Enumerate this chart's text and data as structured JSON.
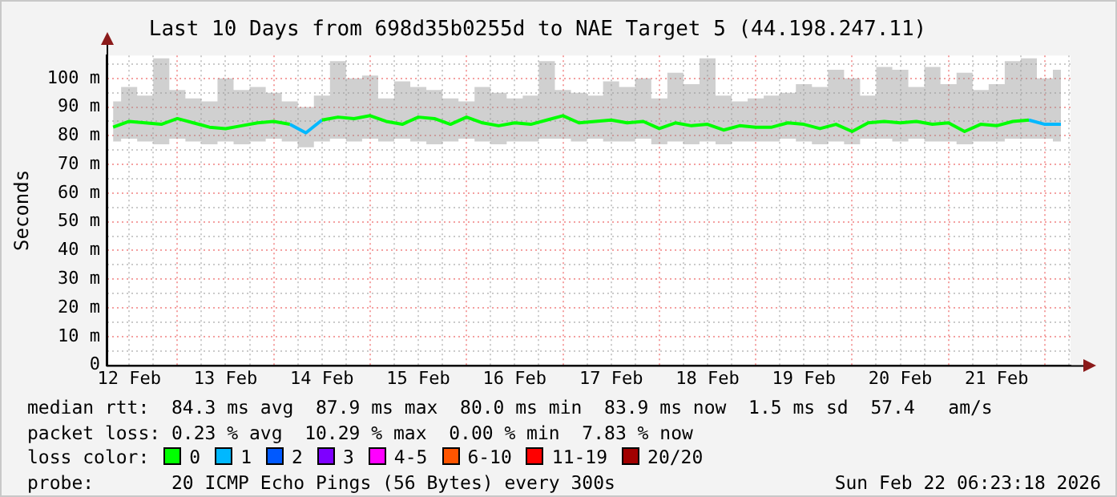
{
  "chart_data": {
    "type": "line",
    "title": "Last 10 Days from 698d35b0255d to NAE Target 5 (44.198.247.11)",
    "ylabel": "Seconds",
    "legend_title": "loss color:",
    "legend": "bottom",
    "grid": true,
    "marker": "none",
    "line_style": "solid",
    "x": [
      "2026-02-12T08:00",
      "2026-02-12T12:00",
      "2026-02-12T16:00",
      "2026-02-12T20:00",
      "2026-02-13T00:00",
      "2026-02-13T04:00",
      "2026-02-13T08:00",
      "2026-02-13T12:00",
      "2026-02-13T16:00",
      "2026-02-13T20:00",
      "2026-02-14T00:00",
      "2026-02-14T04:00",
      "2026-02-14T08:00",
      "2026-02-14T12:00",
      "2026-02-14T16:00",
      "2026-02-14T20:00",
      "2026-02-15T00:00",
      "2026-02-15T04:00",
      "2026-02-15T08:00",
      "2026-02-15T12:00",
      "2026-02-15T16:00",
      "2026-02-15T20:00",
      "2026-02-16T00:00",
      "2026-02-16T04:00",
      "2026-02-16T08:00",
      "2026-02-16T12:00",
      "2026-02-16T16:00",
      "2026-02-16T20:00",
      "2026-02-17T00:00",
      "2026-02-17T04:00",
      "2026-02-17T08:00",
      "2026-02-17T12:00",
      "2026-02-17T16:00",
      "2026-02-17T20:00",
      "2026-02-18T00:00",
      "2026-02-18T04:00",
      "2026-02-18T08:00",
      "2026-02-18T12:00",
      "2026-02-18T16:00",
      "2026-02-18T20:00",
      "2026-02-19T00:00",
      "2026-02-19T04:00",
      "2026-02-19T08:00",
      "2026-02-19T12:00",
      "2026-02-19T16:00",
      "2026-02-19T20:00",
      "2026-02-20T00:00",
      "2026-02-20T04:00",
      "2026-02-20T08:00",
      "2026-02-20T12:00",
      "2026-02-20T16:00",
      "2026-02-20T20:00",
      "2026-02-21T00:00",
      "2026-02-21T04:00",
      "2026-02-21T08:00",
      "2026-02-21T12:00",
      "2026-02-21T16:00",
      "2026-02-21T20:00",
      "2026-02-22T00:00",
      "2026-02-22T04:00"
    ],
    "xlim": [
      "2026-02-12T06:23",
      "2026-02-22T06:23"
    ],
    "xticks": [
      {
        "value": "2026-02-12T12:00",
        "label": "12 Feb"
      },
      {
        "value": "2026-02-12T18:00",
        "label": null
      },
      {
        "value": "2026-02-13T00:00",
        "label": null
      },
      {
        "value": "2026-02-13T06:00",
        "label": null
      },
      {
        "value": "2026-02-13T12:00",
        "label": "13 Feb"
      },
      {
        "value": "2026-02-13T18:00",
        "label": null
      },
      {
        "value": "2026-02-14T00:00",
        "label": null
      },
      {
        "value": "2026-02-14T06:00",
        "label": null
      },
      {
        "value": "2026-02-14T12:00",
        "label": "14 Feb"
      },
      {
        "value": "2026-02-14T18:00",
        "label": null
      },
      {
        "value": "2026-02-15T00:00",
        "label": null
      },
      {
        "value": "2026-02-15T06:00",
        "label": null
      },
      {
        "value": "2026-02-15T12:00",
        "label": "15 Feb"
      },
      {
        "value": "2026-02-15T18:00",
        "label": null
      },
      {
        "value": "2026-02-16T00:00",
        "label": null
      },
      {
        "value": "2026-02-16T06:00",
        "label": null
      },
      {
        "value": "2026-02-16T12:00",
        "label": "16 Feb"
      },
      {
        "value": "2026-02-16T18:00",
        "label": null
      },
      {
        "value": "2026-02-17T00:00",
        "label": null
      },
      {
        "value": "2026-02-17T06:00",
        "label": null
      },
      {
        "value": "2026-02-17T12:00",
        "label": "17 Feb"
      },
      {
        "value": "2026-02-17T18:00",
        "label": null
      },
      {
        "value": "2026-02-18T00:00",
        "label": null
      },
      {
        "value": "2026-02-18T06:00",
        "label": null
      },
      {
        "value": "2026-02-18T12:00",
        "label": "18 Feb"
      },
      {
        "value": "2026-02-18T18:00",
        "label": null
      },
      {
        "value": "2026-02-19T00:00",
        "label": null
      },
      {
        "value": "2026-02-19T06:00",
        "label": null
      },
      {
        "value": "2026-02-19T12:00",
        "label": "19 Feb"
      },
      {
        "value": "2026-02-19T18:00",
        "label": null
      },
      {
        "value": "2026-02-20T00:00",
        "label": null
      },
      {
        "value": "2026-02-20T06:00",
        "label": null
      },
      {
        "value": "2026-02-20T12:00",
        "label": "20 Feb"
      },
      {
        "value": "2026-02-20T18:00",
        "label": null
      },
      {
        "value": "2026-02-21T00:00",
        "label": null
      },
      {
        "value": "2026-02-21T06:00",
        "label": null
      },
      {
        "value": "2026-02-21T12:00",
        "label": "21 Feb"
      },
      {
        "value": "2026-02-21T18:00",
        "label": null
      },
      {
        "value": "2026-02-22T00:00",
        "label": null
      },
      {
        "value": "2026-02-22T06:00",
        "label": null
      }
    ],
    "ylim": [
      0,
      108
    ],
    "yticks": [
      0,
      {
        "value": 5,
        "label": null
      },
      {
        "value": 10,
        "label": "10 m"
      },
      {
        "value": 15,
        "label": null
      },
      {
        "value": 20,
        "label": "20 m"
      },
      {
        "value": 25,
        "label": null
      },
      {
        "value": 30,
        "label": "30 m"
      },
      {
        "value": 35,
        "label": null
      },
      {
        "value": 40,
        "label": "40 m"
      },
      {
        "value": 45,
        "label": null
      },
      {
        "value": 50,
        "label": "50 m"
      },
      {
        "value": 55,
        "label": null
      },
      {
        "value": 60,
        "label": "60 m"
      },
      {
        "value": 65,
        "label": null
      },
      {
        "value": 70,
        "label": "70 m"
      },
      {
        "value": 75,
        "label": null
      },
      {
        "value": 80,
        "label": "80 m"
      },
      {
        "value": 85,
        "label": null
      },
      {
        "value": 90,
        "label": "90 m"
      },
      {
        "value": 95,
        "label": null
      },
      {
        "value": 100,
        "label": "100 m"
      },
      {
        "value": 105,
        "label": null
      }
    ],
    "series": [
      {
        "name": "0",
        "color": "#00ff00",
        "values": [
          83,
          85,
          84.5,
          84,
          86,
          84.5,
          83,
          82.5,
          83.5,
          84.5,
          85,
          84,
          null,
          85.5,
          86.5,
          86,
          87,
          85,
          84,
          86.5,
          86,
          84,
          86.5,
          84.5,
          83.5,
          84.5,
          84,
          85.5,
          87,
          84.5,
          85,
          85.5,
          84.5,
          85,
          82.5,
          84.5,
          83.5,
          84,
          82,
          83.5,
          83,
          83,
          84.5,
          84,
          82.5,
          84,
          81.5,
          84.5,
          85,
          84.5,
          85,
          84,
          84.5,
          81.5,
          84,
          83.5,
          85,
          85.5,
          null,
          null
        ],
        "lower": [
          78,
          79,
          78,
          77,
          79,
          78,
          77,
          78,
          77,
          78,
          79,
          78,
          76,
          78,
          79,
          78,
          79,
          78,
          79,
          78,
          77,
          78,
          79,
          78,
          77,
          78,
          78,
          79,
          79,
          78,
          79,
          78,
          78,
          79,
          77,
          78,
          77,
          78,
          77,
          78,
          78,
          78,
          79,
          78,
          77,
          78,
          77,
          79,
          79,
          78,
          79,
          78,
          78,
          77,
          78,
          78,
          79,
          79,
          79,
          78
        ],
        "upper": [
          92,
          97,
          94,
          107,
          96,
          93,
          92,
          100,
          96,
          97,
          95,
          92,
          90,
          94,
          106,
          100,
          101,
          93,
          99,
          97,
          96,
          93,
          92,
          97,
          95,
          93,
          94,
          106,
          96,
          95,
          94,
          99,
          97,
          100,
          93,
          102,
          98,
          107,
          94,
          92,
          93,
          94,
          95,
          98,
          97,
          103,
          100,
          94,
          104,
          103,
          97,
          104,
          98,
          102,
          96,
          98,
          106,
          107,
          100,
          103
        ]
      },
      {
        "name": "1",
        "color": "#00b8ff",
        "values": [
          null,
          null,
          null,
          null,
          null,
          null,
          null,
          null,
          null,
          null,
          null,
          84,
          81,
          85.5,
          null,
          null,
          null,
          null,
          null,
          null,
          null,
          null,
          null,
          null,
          null,
          null,
          null,
          null,
          null,
          null,
          null,
          null,
          null,
          null,
          null,
          null,
          null,
          null,
          null,
          null,
          null,
          null,
          null,
          null,
          null,
          null,
          null,
          null,
          null,
          null,
          null,
          null,
          null,
          null,
          null,
          null,
          null,
          85.5,
          84,
          84
        ]
      },
      {
        "name": "2",
        "color": "#0059ff",
        "values": [
          null,
          null,
          null,
          null,
          null,
          null,
          null,
          null,
          null,
          null,
          null,
          null,
          null,
          null,
          null,
          null,
          null,
          null,
          null,
          null,
          null,
          null,
          null,
          null,
          null,
          null,
          null,
          null,
          null,
          null,
          null,
          null,
          null,
          null,
          null,
          null,
          null,
          null,
          null,
          null,
          null,
          null,
          null,
          null,
          null,
          null,
          null,
          null,
          null,
          null,
          null,
          null,
          null,
          null,
          null,
          null,
          null,
          null,
          null,
          null
        ]
      },
      {
        "name": "3",
        "color": "#7e00ff",
        "values": [
          null,
          null,
          null,
          null,
          null,
          null,
          null,
          null,
          null,
          null,
          null,
          null,
          null,
          null,
          null,
          null,
          null,
          null,
          null,
          null,
          null,
          null,
          null,
          null,
          null,
          null,
          null,
          null,
          null,
          null,
          null,
          null,
          null,
          null,
          null,
          null,
          null,
          null,
          null,
          null,
          null,
          null,
          null,
          null,
          null,
          null,
          null,
          null,
          null,
          null,
          null,
          null,
          null,
          null,
          null,
          null,
          null,
          null,
          null,
          null
        ]
      },
      {
        "name": "4-5",
        "color": "#ff00ff",
        "values": [
          null,
          null,
          null,
          null,
          null,
          null,
          null,
          null,
          null,
          null,
          null,
          null,
          null,
          null,
          null,
          null,
          null,
          null,
          null,
          null,
          null,
          null,
          null,
          null,
          null,
          null,
          null,
          null,
          null,
          null,
          null,
          null,
          null,
          null,
          null,
          null,
          null,
          null,
          null,
          null,
          null,
          null,
          null,
          null,
          null,
          null,
          null,
          null,
          null,
          null,
          null,
          null,
          null,
          null,
          null,
          null,
          null,
          null,
          null,
          null
        ]
      },
      {
        "name": "6-10",
        "color": "#ff5500",
        "values": [
          null,
          null,
          null,
          null,
          null,
          null,
          null,
          null,
          null,
          null,
          null,
          null,
          null,
          null,
          null,
          null,
          null,
          null,
          null,
          null,
          null,
          null,
          null,
          null,
          null,
          null,
          null,
          null,
          null,
          null,
          null,
          null,
          null,
          null,
          null,
          null,
          null,
          null,
          null,
          null,
          null,
          null,
          null,
          null,
          null,
          null,
          null,
          null,
          null,
          null,
          null,
          null,
          null,
          null,
          null,
          null,
          null,
          null,
          null,
          null
        ]
      },
      {
        "name": "11-19",
        "color": "#ff0000",
        "values": [
          null,
          null,
          null,
          null,
          null,
          null,
          null,
          null,
          null,
          null,
          null,
          null,
          null,
          null,
          null,
          null,
          null,
          null,
          null,
          null,
          null,
          null,
          null,
          null,
          null,
          null,
          null,
          null,
          null,
          null,
          null,
          null,
          null,
          null,
          null,
          null,
          null,
          null,
          null,
          null,
          null,
          null,
          null,
          null,
          null,
          null,
          null,
          null,
          null,
          null,
          null,
          null,
          null,
          null,
          null,
          null,
          null,
          null,
          null,
          null
        ]
      },
      {
        "name": "20/20",
        "color": "#a10000",
        "values": [
          null,
          null,
          null,
          null,
          null,
          null,
          null,
          null,
          null,
          null,
          null,
          null,
          null,
          null,
          null,
          null,
          null,
          null,
          null,
          null,
          null,
          null,
          null,
          null,
          null,
          null,
          null,
          null,
          null,
          null,
          null,
          null,
          null,
          null,
          null,
          null,
          null,
          null,
          null,
          null,
          null,
          null,
          null,
          null,
          null,
          null,
          null,
          null,
          null,
          null,
          null,
          null,
          null,
          null,
          null,
          null,
          null,
          null,
          null,
          null
        ]
      }
    ],
    "annotations": [
      "median rtt:  84.3 ms avg  87.9 ms max  80.0 ms min  83.9 ms now  1.5 ms sd  57.4   am/s",
      "packet loss: 0.23 % avg  10.29 % max  0.00 % min  7.83 % now",
      "probe:       20 ICMP Echo Pings (56 Bytes) every 300s",
      "Sun Feb 22 06:23:18 2026"
    ]
  }
}
